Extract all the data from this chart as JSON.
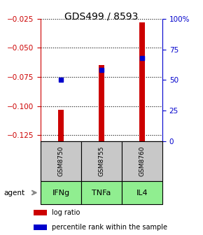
{
  "title": "GDS499 / 8593",
  "samples": [
    "GSM8750",
    "GSM8755",
    "GSM8760"
  ],
  "agents": [
    "IFNg",
    "TNFa",
    "IL4"
  ],
  "log_ratios": [
    -0.103,
    -0.065,
    -0.028
  ],
  "percentile_ranks": [
    50,
    58,
    68
  ],
  "ylim_left": [
    -0.13,
    -0.025
  ],
  "ylim_right": [
    0,
    100
  ],
  "yticks_left": [
    -0.125,
    -0.1,
    -0.075,
    -0.05,
    -0.025
  ],
  "yticks_right": [
    0,
    25,
    50,
    75,
    100
  ],
  "bar_color": "#cc0000",
  "percentile_color": "#0000cc",
  "agent_color": "#90ee90",
  "gsm_bg": "#c8c8c8",
  "bar_width": 0.15,
  "left_axis_color": "#cc0000",
  "right_axis_color": "#0000cc"
}
